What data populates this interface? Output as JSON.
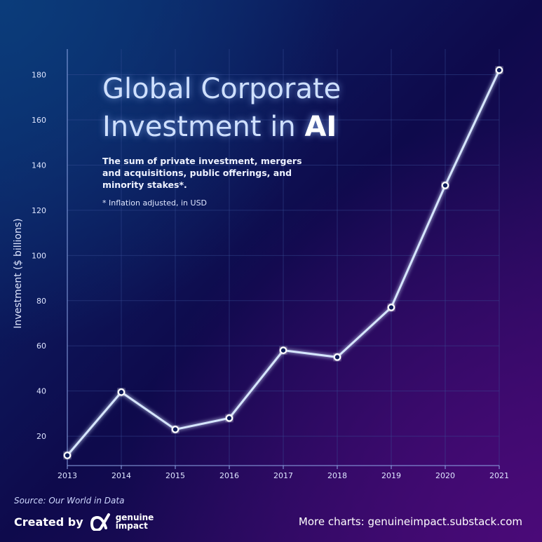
{
  "title": {
    "line1": "Global Corporate",
    "line2_prefix": "Investment in",
    "line2_highlight": "AI"
  },
  "subtitle": "The sum of private investment, mergers and acquisitions, public offerings, and minority stakes*.",
  "note": "* Inflation adjusted, in USD",
  "source": "Source: Our World in Data",
  "footer": {
    "created_by": "Created by",
    "brand_line1": "genuine",
    "brand_line2": "impact",
    "more_charts": "More charts: genuineimpact.substack.com"
  },
  "colors": {
    "line": "#d6e6ff",
    "grid": "#3a4f9a",
    "text": "#dfe6ff"
  },
  "chart_data": {
    "type": "line",
    "x": [
      "2013",
      "2014",
      "2015",
      "2016",
      "2017",
      "2018",
      "2019",
      "2020",
      "2021"
    ],
    "series": [
      {
        "values": [
          11.5,
          39.5,
          23,
          28,
          58,
          55,
          77,
          131,
          182
        ]
      }
    ],
    "ylabel": "Investment ($ billions)",
    "yticks": [
      20,
      40,
      60,
      80,
      100,
      120,
      140,
      160,
      180
    ],
    "ylim": [
      7,
      187
    ],
    "grid": true
  }
}
